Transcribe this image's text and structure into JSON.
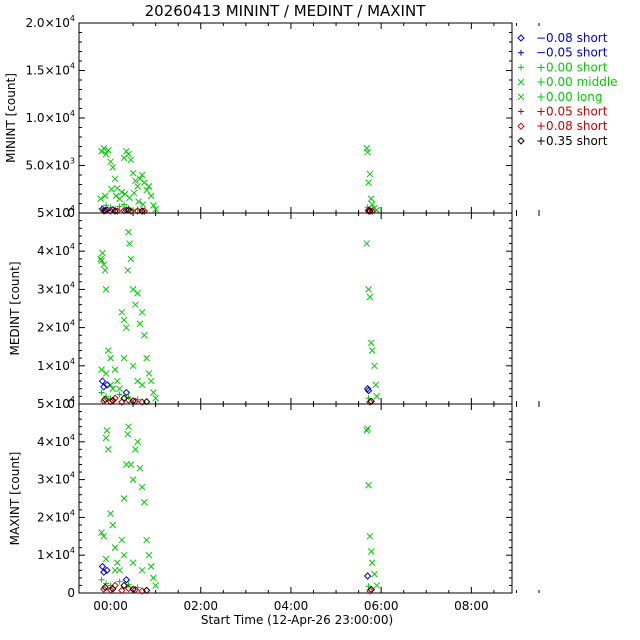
{
  "title": "20260413 MININT / MEDINT / MAXINT",
  "xlabel": "Start Time (12-Apr-26 23:00:00)",
  "x_ticks": [
    "00:00",
    "02:00",
    "04:00",
    "06:00",
    "08:00"
  ],
  "panels": [
    {
      "ylabel": "MININT [count]",
      "ylim": [
        0,
        20000
      ],
      "y_ticks": [
        {
          "v": 0,
          "m": "0",
          "e": ""
        },
        {
          "v": 5000,
          "m": "5.0×10",
          "e": "3"
        },
        {
          "v": 10000,
          "m": "1.0×10",
          "e": "4"
        },
        {
          "v": 15000,
          "m": "1.5×10",
          "e": "4"
        },
        {
          "v": 20000,
          "m": "2.0×10",
          "e": "4"
        }
      ]
    },
    {
      "ylabel": "MEDINT [count]",
      "ylim": [
        0,
        50000
      ],
      "y_ticks": [
        {
          "v": 0,
          "m": "0",
          "e": ""
        },
        {
          "v": 10000,
          "m": "1×10",
          "e": "4"
        },
        {
          "v": 20000,
          "m": "2×10",
          "e": "4"
        },
        {
          "v": 30000,
          "m": "3×10",
          "e": "4"
        },
        {
          "v": 40000,
          "m": "4×10",
          "e": "4"
        },
        {
          "v": 50000,
          "m": "5×10",
          "e": "4"
        }
      ]
    },
    {
      "ylabel": "MAXINT [count]",
      "ylim": [
        0,
        50000
      ],
      "y_ticks": [
        {
          "v": 0,
          "m": "0",
          "e": ""
        },
        {
          "v": 10000,
          "m": "1×10",
          "e": "4"
        },
        {
          "v": 20000,
          "m": "2×10",
          "e": "4"
        },
        {
          "v": 30000,
          "m": "3×10",
          "e": "4"
        },
        {
          "v": 40000,
          "m": "4×10",
          "e": "4"
        },
        {
          "v": 50000,
          "m": "5×10",
          "e": "4"
        }
      ]
    }
  ],
  "legend": [
    {
      "label": "−0.08 short",
      "color": "#0000cc",
      "marker": "diamond"
    },
    {
      "label": "−0.05 short",
      "color": "#0000cc",
      "marker": "plus"
    },
    {
      "label": "+0.00 short",
      "color": "#00cc00",
      "marker": "plus"
    },
    {
      "label": "+0.00 middle",
      "color": "#00cc00",
      "marker": "x"
    },
    {
      "label": "+0.00 long",
      "color": "#00cc00",
      "marker": "x"
    },
    {
      "label": "+0.05 short",
      "color": "#cc0000",
      "marker": "plus"
    },
    {
      "label": "+0.08 short",
      "color": "#cc0000",
      "marker": "diamond"
    },
    {
      "label": "+0.35 short",
      "color": "#000000",
      "marker": "diamond"
    }
  ],
  "chart_data": {
    "type": "scatter",
    "title": "20260413 MININT / MEDINT / MAXINT",
    "xlabel": "Start Time (12-Apr-26 23:00:00)",
    "x_unit": "hours from 2026-04-12 23:00",
    "xlim": [
      0.3,
      9.9
    ],
    "grid": false,
    "legend_position": "right",
    "clusters": [
      {
        "name_ref": "cluster-1",
        "x_range": [
          0.72,
          2.05
        ]
      },
      {
        "name_ref": "cluster-2",
        "x_range": [
          6.58,
          6.98
        ]
      }
    ],
    "panels": [
      {
        "ylabel": "MININT [count]",
        "ylim": [
          0,
          20000
        ],
        "green_x": [
          [
            0.8,
            6500
          ],
          [
            0.85,
            6800
          ],
          [
            0.9,
            6200
          ],
          [
            0.95,
            6600
          ],
          [
            1.0,
            5400
          ],
          [
            1.05,
            4800
          ],
          [
            1.1,
            3600
          ],
          [
            1.15,
            2600
          ],
          [
            1.2,
            1500
          ],
          [
            1.25,
            2200
          ],
          [
            1.3,
            5800
          ],
          [
            1.35,
            6500
          ],
          [
            1.4,
            6200
          ],
          [
            1.45,
            5600
          ],
          [
            1.5,
            4200
          ],
          [
            1.55,
            3400
          ],
          [
            1.6,
            2800
          ],
          [
            1.65,
            3600
          ],
          [
            1.7,
            4000
          ],
          [
            1.75,
            3200
          ],
          [
            1.8,
            2400
          ],
          [
            1.85,
            2800
          ],
          [
            1.9,
            1800
          ],
          [
            1.95,
            800
          ],
          [
            2.0,
            400
          ],
          [
            0.78,
            1500
          ],
          [
            0.88,
            1800
          ],
          [
            1.02,
            2500
          ],
          [
            1.12,
            1800
          ],
          [
            1.32,
            2000
          ],
          [
            1.42,
            1600
          ],
          [
            1.52,
            2100
          ],
          [
            1.62,
            1200
          ],
          [
            1.72,
            900
          ],
          [
            6.68,
            6800
          ],
          [
            6.7,
            6400
          ],
          [
            6.72,
            3200
          ],
          [
            6.75,
            4100
          ],
          [
            6.78,
            1500
          ],
          [
            6.8,
            900
          ],
          [
            6.85,
            500
          ],
          [
            6.9,
            300
          ]
        ],
        "green_plus": [
          [
            0.8,
            500
          ],
          [
            0.9,
            800
          ],
          [
            1.0,
            600
          ],
          [
            1.1,
            400
          ],
          [
            1.2,
            700
          ],
          [
            1.3,
            900
          ],
          [
            1.4,
            500
          ],
          [
            1.5,
            300
          ],
          [
            1.6,
            400
          ],
          [
            1.7,
            200
          ],
          [
            6.7,
            600
          ],
          [
            6.75,
            400
          ]
        ],
        "blue": [
          [
            0.82,
            400
          ],
          [
            0.92,
            300
          ],
          [
            1.05,
            350
          ],
          [
            1.35,
            300
          ],
          [
            6.72,
            300
          ]
        ],
        "red": [
          [
            0.85,
            200
          ],
          [
            1.0,
            150
          ],
          [
            1.15,
            100
          ],
          [
            1.3,
            250
          ],
          [
            1.45,
            150
          ],
          [
            1.6,
            100
          ],
          [
            1.75,
            80
          ],
          [
            6.72,
            120
          ],
          [
            6.8,
            80
          ]
        ],
        "black": [
          [
            0.88,
            250
          ],
          [
            1.1,
            200
          ],
          [
            1.4,
            300
          ],
          [
            1.7,
            150
          ],
          [
            6.75,
            200
          ]
        ]
      },
      {
        "ylabel": "MEDINT [count]",
        "ylim": [
          0,
          50000
        ],
        "green_x": [
          [
            0.78,
            38000
          ],
          [
            0.8,
            37500
          ],
          [
            0.82,
            39500
          ],
          [
            0.85,
            36500
          ],
          [
            0.88,
            35000
          ],
          [
            0.9,
            30000
          ],
          [
            0.95,
            14000
          ],
          [
            1.0,
            12000
          ],
          [
            1.05,
            4000
          ],
          [
            1.1,
            9000
          ],
          [
            1.15,
            6000
          ],
          [
            1.2,
            4000
          ],
          [
            1.25,
            24000
          ],
          [
            1.3,
            22000
          ],
          [
            1.35,
            20000
          ],
          [
            1.38,
            35000
          ],
          [
            1.4,
            45000
          ],
          [
            1.42,
            42000
          ],
          [
            1.45,
            38000
          ],
          [
            1.5,
            30000
          ],
          [
            1.55,
            26000
          ],
          [
            1.6,
            29000
          ],
          [
            1.65,
            21000
          ],
          [
            1.7,
            24000
          ],
          [
            1.75,
            18000
          ],
          [
            1.8,
            12000
          ],
          [
            1.85,
            8000
          ],
          [
            1.9,
            6000
          ],
          [
            1.95,
            3000
          ],
          [
            2.0,
            1500
          ],
          [
            0.8,
            9000
          ],
          [
            0.9,
            8000
          ],
          [
            1.0,
            5000
          ],
          [
            1.3,
            12000
          ],
          [
            1.5,
            10000
          ],
          [
            1.6,
            6000
          ],
          [
            1.7,
            5000
          ],
          [
            6.68,
            42000
          ],
          [
            6.72,
            30000
          ],
          [
            6.75,
            28000
          ],
          [
            6.78,
            16000
          ],
          [
            6.8,
            14000
          ],
          [
            6.85,
            10000
          ],
          [
            6.88,
            5000
          ],
          [
            6.9,
            2000
          ]
        ],
        "green_plus": [
          [
            0.8,
            3000
          ],
          [
            0.9,
            2000
          ],
          [
            1.0,
            1500
          ],
          [
            1.2,
            2500
          ],
          [
            1.4,
            1800
          ],
          [
            1.6,
            1200
          ],
          [
            6.72,
            1500
          ]
        ],
        "blue": [
          [
            0.82,
            6000
          ],
          [
            0.85,
            4500
          ],
          [
            0.92,
            5000
          ],
          [
            1.35,
            3000
          ],
          [
            6.7,
            4000
          ],
          [
            6.72,
            3500
          ]
        ],
        "red": [
          [
            0.85,
            800
          ],
          [
            1.0,
            600
          ],
          [
            1.1,
            1500
          ],
          [
            1.25,
            500
          ],
          [
            1.4,
            1000
          ],
          [
            1.55,
            700
          ],
          [
            1.7,
            400
          ],
          [
            6.75,
            500
          ]
        ],
        "black": [
          [
            0.88,
            1200
          ],
          [
            1.05,
            900
          ],
          [
            1.3,
            1500
          ],
          [
            1.5,
            800
          ],
          [
            1.8,
            600
          ],
          [
            6.78,
            700
          ]
        ]
      },
      {
        "ylabel": "MAXINT [count]",
        "ylim": [
          0,
          50000
        ],
        "green_x": [
          [
            0.8,
            16000
          ],
          [
            0.85,
            15000
          ],
          [
            0.9,
            41000
          ],
          [
            0.92,
            43000
          ],
          [
            0.95,
            38000
          ],
          [
            1.0,
            21000
          ],
          [
            1.05,
            18000
          ],
          [
            1.1,
            12000
          ],
          [
            1.15,
            8000
          ],
          [
            1.2,
            6000
          ],
          [
            1.25,
            14000
          ],
          [
            1.3,
            25000
          ],
          [
            1.35,
            34000
          ],
          [
            1.38,
            42000
          ],
          [
            1.4,
            44000
          ],
          [
            1.45,
            34000
          ],
          [
            1.5,
            30000
          ],
          [
            1.55,
            38000
          ],
          [
            1.6,
            40000
          ],
          [
            1.65,
            33000
          ],
          [
            1.7,
            28000
          ],
          [
            1.75,
            24000
          ],
          [
            1.8,
            14000
          ],
          [
            1.85,
            10000
          ],
          [
            1.9,
            7000
          ],
          [
            1.95,
            4000
          ],
          [
            2.0,
            2000
          ],
          [
            0.9,
            9000
          ],
          [
            1.1,
            6000
          ],
          [
            1.3,
            10000
          ],
          [
            1.5,
            8000
          ],
          [
            1.7,
            6000
          ],
          [
            6.68,
            43000
          ],
          [
            6.7,
            43500
          ],
          [
            6.72,
            28500
          ],
          [
            6.75,
            15000
          ],
          [
            6.78,
            11000
          ],
          [
            6.8,
            8000
          ],
          [
            6.85,
            5000
          ],
          [
            6.9,
            2000
          ]
        ],
        "green_plus": [
          [
            0.8,
            3500
          ],
          [
            0.9,
            2500
          ],
          [
            1.0,
            2000
          ],
          [
            1.2,
            3000
          ],
          [
            1.4,
            2200
          ],
          [
            1.6,
            1500
          ],
          [
            6.72,
            1800
          ]
        ],
        "blue": [
          [
            0.82,
            7000
          ],
          [
            0.85,
            5500
          ],
          [
            0.92,
            6000
          ],
          [
            1.35,
            3500
          ],
          [
            6.7,
            4500
          ]
        ],
        "red": [
          [
            0.85,
            1000
          ],
          [
            1.0,
            800
          ],
          [
            1.1,
            2000
          ],
          [
            1.25,
            700
          ],
          [
            1.4,
            1200
          ],
          [
            1.55,
            900
          ],
          [
            1.7,
            500
          ],
          [
            6.75,
            600
          ]
        ],
        "black": [
          [
            0.88,
            1500
          ],
          [
            1.05,
            1100
          ],
          [
            1.3,
            2000
          ],
          [
            1.5,
            1000
          ],
          [
            1.8,
            700
          ],
          [
            6.78,
            900
          ]
        ]
      }
    ]
  }
}
